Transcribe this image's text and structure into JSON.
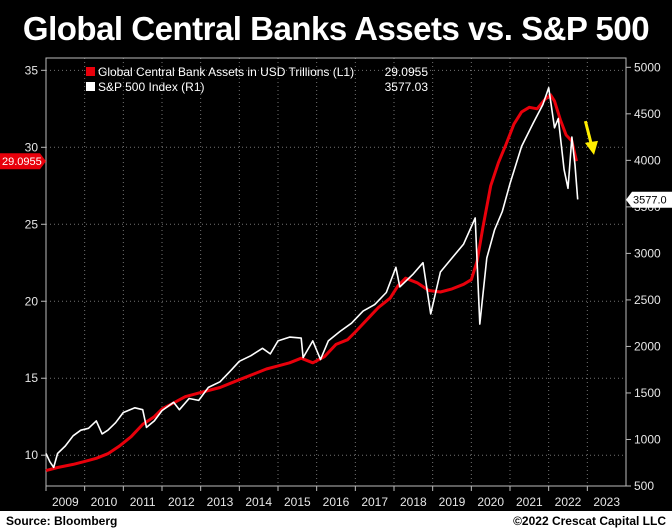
{
  "title": "Global Central Banks Assets vs. S&P 500",
  "source": "Source: Bloomberg",
  "copyright": "©2022 Crescat Capital LLC",
  "colors": {
    "background": "#000000",
    "cb_series": "#e8000b",
    "spx_series": "#ffffff",
    "arrow": "#ffee00",
    "grid": "#ffffff"
  },
  "chart_data": {
    "type": "line",
    "x_axis": {
      "min": 2009,
      "max": 2024,
      "ticks": [
        "2009",
        "2010",
        "2011",
        "2012",
        "2013",
        "2014",
        "2015",
        "2016",
        "2017",
        "2018",
        "2019",
        "2020",
        "2021",
        "2022",
        "2023"
      ]
    },
    "y_left": {
      "min": 8,
      "max": 35.8,
      "ticks": [
        "10",
        "15",
        "20",
        "25",
        "30",
        "35"
      ]
    },
    "y_right": {
      "min": 500,
      "max": 5100,
      "ticks": [
        "500",
        "1000",
        "1500",
        "2000",
        "2500",
        "3000",
        "3500",
        "4000",
        "4500",
        "5000"
      ]
    },
    "grid": true,
    "legend_position": "top-left",
    "series": [
      {
        "name": "Global Central Bank Assets in USD Trillions (L1)",
        "last_value": "29.0955",
        "axis": "left",
        "points": [
          [
            2009.0,
            9.0
          ],
          [
            2009.3,
            9.2
          ],
          [
            2009.7,
            9.4
          ],
          [
            2010.0,
            9.6
          ],
          [
            2010.3,
            9.8
          ],
          [
            2010.6,
            10.1
          ],
          [
            2010.9,
            10.6
          ],
          [
            2011.2,
            11.2
          ],
          [
            2011.5,
            12.0
          ],
          [
            2011.8,
            12.5
          ],
          [
            2012.0,
            13.0
          ],
          [
            2012.3,
            13.4
          ],
          [
            2012.6,
            13.8
          ],
          [
            2012.9,
            14.0
          ],
          [
            2013.2,
            14.2
          ],
          [
            2013.5,
            14.4
          ],
          [
            2013.8,
            14.7
          ],
          [
            2014.1,
            15.0
          ],
          [
            2014.4,
            15.3
          ],
          [
            2014.7,
            15.6
          ],
          [
            2015.0,
            15.8
          ],
          [
            2015.3,
            16.0
          ],
          [
            2015.6,
            16.3
          ],
          [
            2015.9,
            16.0
          ],
          [
            2016.2,
            16.4
          ],
          [
            2016.5,
            17.2
          ],
          [
            2016.8,
            17.5
          ],
          [
            2017.0,
            18.0
          ],
          [
            2017.3,
            18.8
          ],
          [
            2017.6,
            19.6
          ],
          [
            2017.9,
            20.2
          ],
          [
            2018.1,
            21.0
          ],
          [
            2018.3,
            21.5
          ],
          [
            2018.6,
            21.2
          ],
          [
            2018.9,
            20.7
          ],
          [
            2019.2,
            20.6
          ],
          [
            2019.5,
            20.8
          ],
          [
            2019.8,
            21.1
          ],
          [
            2020.0,
            21.4
          ],
          [
            2020.15,
            22.6
          ],
          [
            2020.3,
            24.8
          ],
          [
            2020.5,
            27.5
          ],
          [
            2020.7,
            29.0
          ],
          [
            2020.9,
            30.2
          ],
          [
            2021.1,
            31.5
          ],
          [
            2021.3,
            32.3
          ],
          [
            2021.5,
            32.6
          ],
          [
            2021.7,
            32.5
          ],
          [
            2021.9,
            33.1
          ],
          [
            2022.05,
            33.4
          ],
          [
            2022.15,
            33.0
          ],
          [
            2022.3,
            31.8
          ],
          [
            2022.45,
            30.8
          ],
          [
            2022.6,
            30.4
          ],
          [
            2022.72,
            29.1
          ]
        ]
      },
      {
        "name": "S&P 500 Index (R1)",
        "last_value": "3577.03",
        "axis": "right",
        "points": [
          [
            2009.0,
            850
          ],
          [
            2009.1,
            760
          ],
          [
            2009.2,
            700
          ],
          [
            2009.3,
            850
          ],
          [
            2009.5,
            930
          ],
          [
            2009.7,
            1040
          ],
          [
            2009.9,
            1100
          ],
          [
            2010.1,
            1120
          ],
          [
            2010.3,
            1200
          ],
          [
            2010.45,
            1060
          ],
          [
            2010.6,
            1100
          ],
          [
            2010.8,
            1180
          ],
          [
            2011.0,
            1290
          ],
          [
            2011.3,
            1340
          ],
          [
            2011.5,
            1320
          ],
          [
            2011.6,
            1130
          ],
          [
            2011.8,
            1200
          ],
          [
            2012.0,
            1310
          ],
          [
            2012.3,
            1400
          ],
          [
            2012.45,
            1320
          ],
          [
            2012.7,
            1440
          ],
          [
            2012.95,
            1420
          ],
          [
            2013.2,
            1560
          ],
          [
            2013.5,
            1620
          ],
          [
            2013.8,
            1750
          ],
          [
            2014.0,
            1840
          ],
          [
            2014.3,
            1900
          ],
          [
            2014.6,
            1980
          ],
          [
            2014.8,
            1920
          ],
          [
            2015.0,
            2060
          ],
          [
            2015.3,
            2100
          ],
          [
            2015.6,
            2090
          ],
          [
            2015.65,
            1880
          ],
          [
            2015.9,
            2060
          ],
          [
            2016.1,
            1860
          ],
          [
            2016.3,
            2060
          ],
          [
            2016.6,
            2160
          ],
          [
            2016.9,
            2250
          ],
          [
            2017.2,
            2380
          ],
          [
            2017.5,
            2450
          ],
          [
            2017.8,
            2580
          ],
          [
            2018.05,
            2850
          ],
          [
            2018.15,
            2640
          ],
          [
            2018.5,
            2780
          ],
          [
            2018.75,
            2900
          ],
          [
            2018.95,
            2350
          ],
          [
            2019.2,
            2800
          ],
          [
            2019.5,
            2950
          ],
          [
            2019.8,
            3100
          ],
          [
            2020.1,
            3380
          ],
          [
            2020.22,
            2240
          ],
          [
            2020.4,
            2950
          ],
          [
            2020.6,
            3250
          ],
          [
            2020.8,
            3450
          ],
          [
            2021.0,
            3750
          ],
          [
            2021.3,
            4150
          ],
          [
            2021.6,
            4400
          ],
          [
            2021.85,
            4600
          ],
          [
            2022.0,
            4780
          ],
          [
            2022.15,
            4350
          ],
          [
            2022.25,
            4450
          ],
          [
            2022.4,
            3900
          ],
          [
            2022.5,
            3700
          ],
          [
            2022.6,
            4250
          ],
          [
            2022.68,
            3950
          ],
          [
            2022.75,
            3580
          ]
        ]
      }
    ],
    "last_value_tags": {
      "left": "29.0955",
      "right": "3577.0"
    }
  }
}
